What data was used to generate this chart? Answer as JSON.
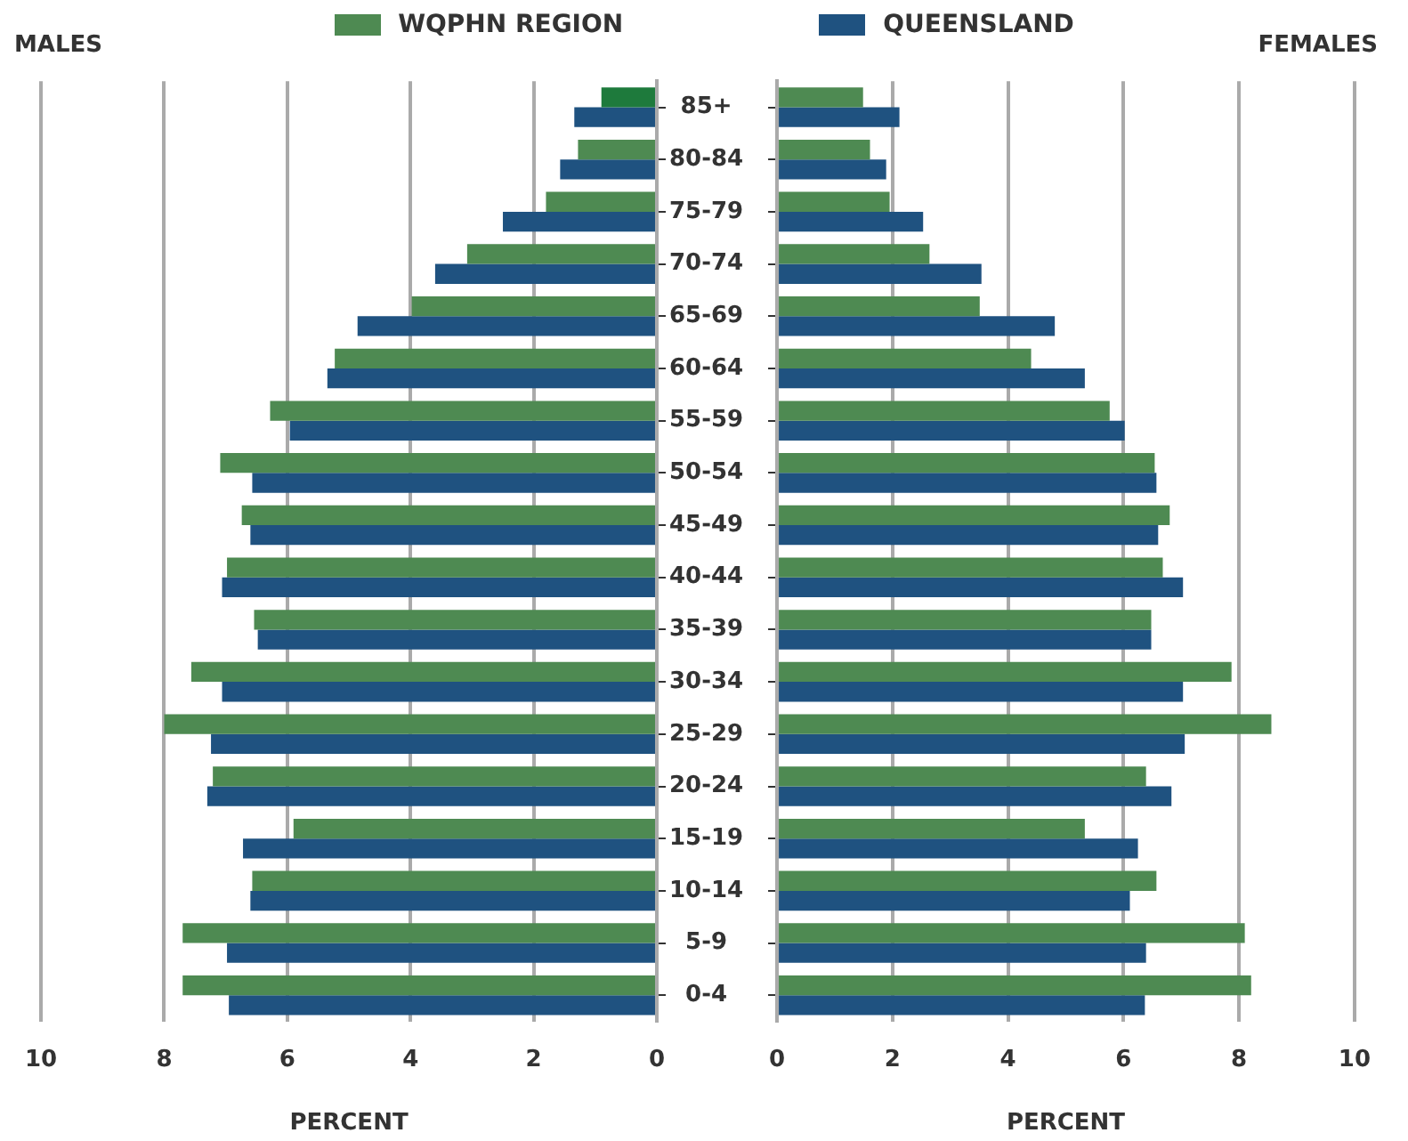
{
  "chart_data": [
    {
      "type": "bar",
      "orientation": "horizontal",
      "title": "MALES",
      "xlabel": "PERCENT",
      "legend": "top",
      "grid": "x",
      "categories": [
        "85+",
        "80-84",
        "75-79",
        "70-74",
        "65-69",
        "60-64",
        "55-59",
        "50-54",
        "45-49",
        "40-44",
        "35-39",
        "30-34",
        "25-29",
        "20-24",
        "15-19",
        "10-14",
        "5-9",
        "0-4"
      ],
      "series": [
        {
          "name": "WQPHN REGION",
          "color": "#4e8a52",
          "colors": [
            "#1e7a3c",
            "#4e8a52",
            "#4e8a52",
            "#4e8a52",
            "#4e8a52",
            "#4e8a52",
            "#4e8a52",
            "#4e8a52",
            "#4e8a52",
            "#4e8a52",
            "#4e8a52",
            "#4e8a52",
            "#4e8a52",
            "#4e8a52",
            "#4e8a52",
            "#4e8a52",
            "#4e8a52",
            "#4e8a52"
          ],
          "values": [
            0.9,
            1.28,
            1.8,
            3.08,
            3.98,
            5.23,
            6.28,
            7.09,
            6.74,
            6.98,
            6.54,
            7.56,
            8.0,
            7.21,
            5.9,
            6.57,
            7.7,
            7.7
          ]
        },
        {
          "name": "QUEENSLAND",
          "color": "#1f5280",
          "values": [
            1.34,
            1.57,
            2.5,
            3.6,
            4.86,
            5.35,
            5.96,
            6.57,
            6.6,
            7.06,
            6.48,
            7.06,
            7.24,
            7.3,
            6.72,
            6.6,
            6.98,
            6.95
          ]
        }
      ],
      "xlim": [
        10,
        0
      ],
      "xticks": [
        10,
        8,
        6,
        4,
        2,
        0
      ]
    },
    {
      "type": "bar",
      "orientation": "horizontal",
      "title": "FEMALES",
      "xlabel": "PERCENT",
      "grid": "x",
      "tick_labels": "x",
      "categories": [
        null,
        null,
        null,
        null,
        null,
        null,
        null,
        null,
        null,
        null,
        null,
        null,
        null,
        null,
        null,
        null,
        null,
        null
      ],
      "series": [
        {
          "color": "#4e8a52",
          "values": [
            1.49,
            1.61,
            1.95,
            2.64,
            3.51,
            4.4,
            5.76,
            6.54,
            6.8,
            6.68,
            6.48,
            7.87,
            8.56,
            6.39,
            5.33,
            6.57,
            8.1,
            8.21
          ]
        },
        {
          "color": "#1f5280",
          "values": [
            2.12,
            1.89,
            2.53,
            3.54,
            4.81,
            5.33,
            6.02,
            6.57,
            6.6,
            7.03,
            6.48,
            7.03,
            7.06,
            6.83,
            6.25,
            6.11,
            6.39,
            6.37
          ]
        }
      ],
      "xlim": [
        0,
        10
      ],
      "xticks": [
        0,
        2,
        4,
        6,
        8,
        10
      ]
    }
  ]
}
